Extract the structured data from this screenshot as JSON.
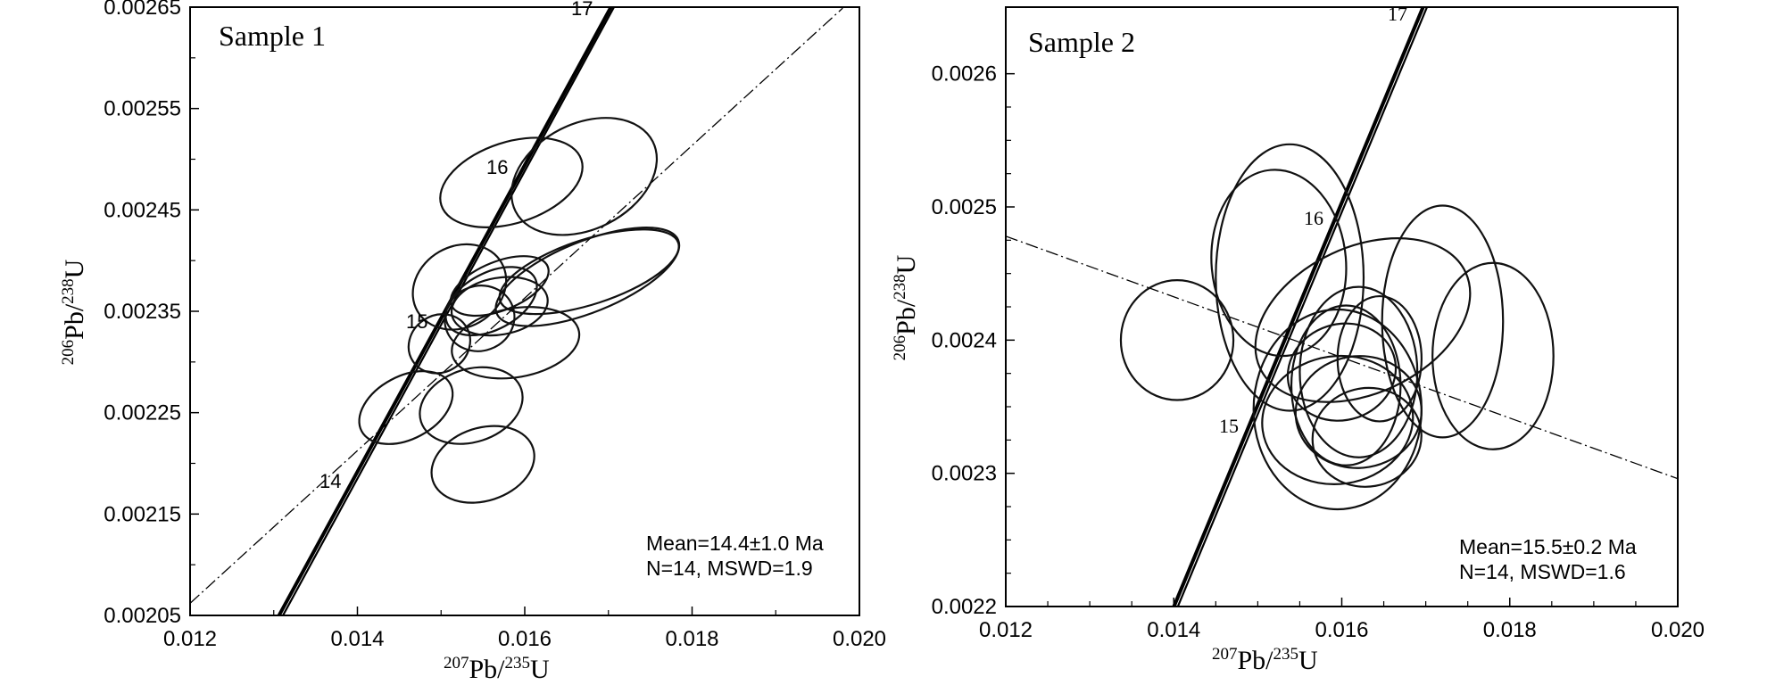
{
  "chart_data": [
    {
      "type": "scatter",
      "title": "Sample 1",
      "xlabel": "207Pb/235U",
      "ylabel": "206Pb/238U",
      "xlim": [
        0.012,
        0.02
      ],
      "ylim": [
        0.00205,
        0.00265
      ],
      "x_ticks": [
        "0.012",
        "0.014",
        "0.016",
        "0.018",
        "0.020"
      ],
      "y_ticks": [
        "0.00205",
        "0.00215",
        "0.00225",
        "0.00235",
        "0.00245",
        "0.00255",
        "0.00265"
      ],
      "annotation": [
        "Mean=14.4±1.0 Ma",
        "N=14, MSWD=1.9"
      ],
      "concordia_ages": [
        "14",
        "15",
        "16",
        "17"
      ],
      "discordia_line": {
        "x": [
          0.012,
          0.0198
        ],
        "y": [
          0.002062,
          0.002649
        ]
      },
      "ellipses": [
        {
          "x": 0.01584,
          "y": 0.002477,
          "rx": 0.00088,
          "ry": 4e-05,
          "angle": 18
        },
        {
          "x": 0.01671,
          "y": 0.002483,
          "rx": 0.00092,
          "ry": 5.2e-05,
          "angle": 27
        },
        {
          "x": 0.01522,
          "y": 0.002374,
          "rx": 0.00058,
          "ry": 4e-05,
          "angle": 30
        },
        {
          "x": 0.0157,
          "y": 0.002375,
          "rx": 0.00062,
          "ry": 2.4e-05,
          "angle": 22
        },
        {
          "x": 0.01675,
          "y": 0.002384,
          "rx": 0.00117,
          "ry": 3.5e-05,
          "angle": 22
        },
        {
          "x": 0.01677,
          "y": 0.002389,
          "rx": 0.00112,
          "ry": 3.2e-05,
          "angle": 18
        },
        {
          "x": 0.0156,
          "y": 0.00236,
          "rx": 0.00059,
          "ry": 2.8e-05,
          "angle": 28
        },
        {
          "x": 0.01546,
          "y": 0.002343,
          "rx": 0.00042,
          "ry": 3.2e-05,
          "angle": 20
        },
        {
          "x": 0.0157,
          "y": 0.002355,
          "rx": 0.00058,
          "ry": 2.8e-05,
          "angle": 10
        },
        {
          "x": 0.01498,
          "y": 0.002318,
          "rx": 0.00038,
          "ry": 2.8e-05,
          "angle": 34
        },
        {
          "x": 0.01589,
          "y": 0.002319,
          "rx": 0.00077,
          "ry": 3.4e-05,
          "angle": 10
        },
        {
          "x": 0.01458,
          "y": 0.002255,
          "rx": 0.0006,
          "ry": 3.1e-05,
          "angle": 28
        },
        {
          "x": 0.01536,
          "y": 0.002257,
          "rx": 0.00063,
          "ry": 3.6e-05,
          "angle": 18
        },
        {
          "x": 0.0155,
          "y": 0.002199,
          "rx": 0.00063,
          "ry": 3.6e-05,
          "angle": 18
        }
      ]
    },
    {
      "type": "scatter",
      "title": "Sample 2",
      "xlabel": "207Pb/235U",
      "ylabel": "206Pb/238U",
      "xlim": [
        0.012,
        0.02
      ],
      "ylim": [
        0.0022,
        0.00265
      ],
      "x_ticks": [
        "0.012",
        "0.014",
        "0.016",
        "0.018",
        "0.020"
      ],
      "y_ticks": [
        "0.0022",
        "0.0023",
        "0.0024",
        "0.0025",
        "0.0026"
      ],
      "annotation": [
        "Mean=15.5±0.2 Ma",
        "N=14, MSWD=1.6"
      ],
      "concordia_ages": [
        "15",
        "16",
        "17"
      ],
      "discordia_line": {
        "x": [
          0.012,
          0.02
        ],
        "y": [
          0.002478,
          0.002296
        ]
      },
      "ellipses": [
        {
          "x": 0.01525,
          "y": 0.002458,
          "rx": 0.0008,
          "ry": 7e-05,
          "angle": 5
        },
        {
          "x": 0.01538,
          "y": 0.002447,
          "rx": 0.00088,
          "ry": 0.0001,
          "angle": 0
        },
        {
          "x": 0.01404,
          "y": 0.0024,
          "rx": 0.00067,
          "ry": 4.5e-05,
          "angle": 0
        },
        {
          "x": 0.01625,
          "y": 0.002415,
          "rx": 0.00135,
          "ry": 5.5e-05,
          "angle": 25
        },
        {
          "x": 0.0172,
          "y": 0.002414,
          "rx": 0.00072,
          "ry": 8.7e-05,
          "angle": 0
        },
        {
          "x": 0.0178,
          "y": 0.002388,
          "rx": 0.00072,
          "ry": 7e-05,
          "angle": 0
        },
        {
          "x": 0.016,
          "y": 0.002376,
          "rx": 0.00065,
          "ry": 3.6e-05,
          "angle": 18
        },
        {
          "x": 0.0162,
          "y": 0.002376,
          "rx": 0.0007,
          "ry": 6.4e-05,
          "angle": 0
        },
        {
          "x": 0.01605,
          "y": 0.002366,
          "rx": 0.00065,
          "ry": 6e-05,
          "angle": 0
        },
        {
          "x": 0.01645,
          "y": 0.002386,
          "rx": 0.0005,
          "ry": 4.7e-05,
          "angle": 0
        },
        {
          "x": 0.01595,
          "y": 0.002348,
          "rx": 0.001,
          "ry": 7.5e-05,
          "angle": 0
        },
        {
          "x": 0.01595,
          "y": 0.00234,
          "rx": 0.0009,
          "ry": 4.8e-05,
          "angle": 8
        },
        {
          "x": 0.0162,
          "y": 0.002346,
          "rx": 0.00075,
          "ry": 4.2e-05,
          "angle": 5
        },
        {
          "x": 0.0163,
          "y": 0.002327,
          "rx": 0.00065,
          "ry": 3.7e-05,
          "angle": 10
        }
      ]
    }
  ]
}
